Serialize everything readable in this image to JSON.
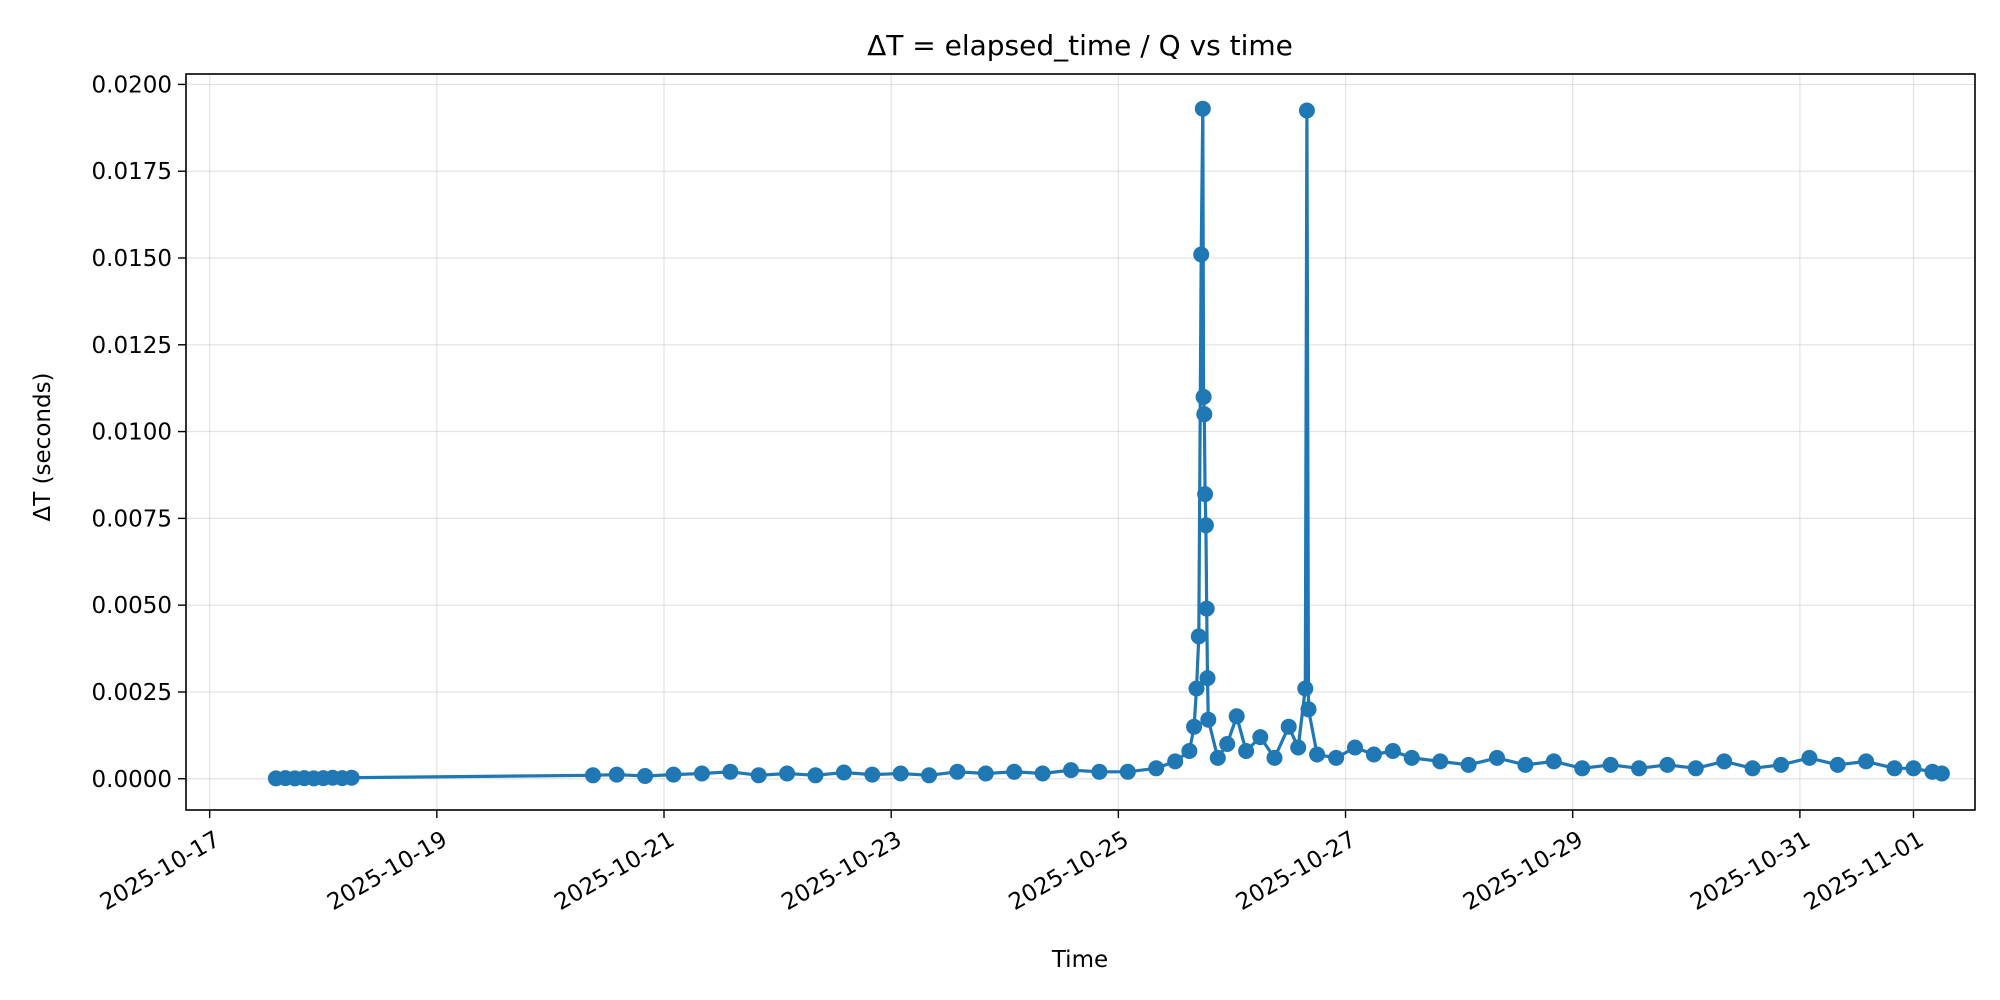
{
  "chart_data": {
    "type": "line",
    "title": "ΔT = elapsed_time / Q vs time",
    "xlabel": "Time",
    "ylabel": "ΔT (seconds)",
    "x_type": "date",
    "xlim": [
      "2025-10-16T19:00",
      "2025-11-01T13:00"
    ],
    "ylim": [
      -0.0009,
      0.0203
    ],
    "x_ticks": [
      "2025-10-17",
      "2025-10-19",
      "2025-10-21",
      "2025-10-23",
      "2025-10-25",
      "2025-10-27",
      "2025-10-29",
      "2025-10-31",
      "2025-11-01"
    ],
    "y_ticks": [
      "0.0000",
      "0.0025",
      "0.0050",
      "0.0075",
      "0.0100",
      "0.0125",
      "0.0150",
      "0.0175",
      "0.0200"
    ],
    "grid": true,
    "color": "#1f77b4",
    "series": [
      {
        "marker": "circle",
        "points": [
          [
            "2025-10-17T14:00",
            1e-05
          ],
          [
            "2025-10-17T16:00",
            2e-05
          ],
          [
            "2025-10-17T18:00",
            1e-05
          ],
          [
            "2025-10-17T20:00",
            2e-05
          ],
          [
            "2025-10-17T22:00",
            1e-05
          ],
          [
            "2025-10-18T00:00",
            2e-05
          ],
          [
            "2025-10-18T02:00",
            3e-05
          ],
          [
            "2025-10-18T04:00",
            2e-05
          ],
          [
            "2025-10-18T06:00",
            3e-05
          ],
          [
            "2025-10-20T09:00",
            0.0001
          ],
          [
            "2025-10-20T14:00",
            0.00012
          ],
          [
            "2025-10-20T20:00",
            8e-05
          ],
          [
            "2025-10-21T02:00",
            0.00012
          ],
          [
            "2025-10-21T08:00",
            0.00015
          ],
          [
            "2025-10-21T14:00",
            0.0002
          ],
          [
            "2025-10-21T20:00",
            0.0001
          ],
          [
            "2025-10-22T02:00",
            0.00015
          ],
          [
            "2025-10-22T08:00",
            0.0001
          ],
          [
            "2025-10-22T14:00",
            0.00018
          ],
          [
            "2025-10-22T20:00",
            0.00012
          ],
          [
            "2025-10-23T02:00",
            0.00015
          ],
          [
            "2025-10-23T08:00",
            0.0001
          ],
          [
            "2025-10-23T14:00",
            0.0002
          ],
          [
            "2025-10-23T20:00",
            0.00015
          ],
          [
            "2025-10-24T02:00",
            0.0002
          ],
          [
            "2025-10-24T08:00",
            0.00015
          ],
          [
            "2025-10-24T14:00",
            0.00025
          ],
          [
            "2025-10-24T20:00",
            0.0002
          ],
          [
            "2025-10-25T02:00",
            0.0002
          ],
          [
            "2025-10-25T08:00",
            0.0003
          ],
          [
            "2025-10-25T12:00",
            0.0005
          ],
          [
            "2025-10-25T15:00",
            0.0008
          ],
          [
            "2025-10-25T16:00",
            0.0015
          ],
          [
            "2025-10-25T16:30",
            0.0026
          ],
          [
            "2025-10-25T17:00",
            0.0041
          ],
          [
            "2025-10-25T17:30",
            0.0151
          ],
          [
            "2025-10-25T17:50",
            0.0193
          ],
          [
            "2025-10-25T18:00",
            0.011
          ],
          [
            "2025-10-25T18:10",
            0.0105
          ],
          [
            "2025-10-25T18:20",
            0.0082
          ],
          [
            "2025-10-25T18:30",
            0.0073
          ],
          [
            "2025-10-25T18:40",
            0.0049
          ],
          [
            "2025-10-25T18:50",
            0.0029
          ],
          [
            "2025-10-25T19:00",
            0.0017
          ],
          [
            "2025-10-25T21:00",
            0.0006
          ],
          [
            "2025-10-25T23:00",
            0.001
          ],
          [
            "2025-10-26T01:00",
            0.0018
          ],
          [
            "2025-10-26T03:00",
            0.0008
          ],
          [
            "2025-10-26T06:00",
            0.0012
          ],
          [
            "2025-10-26T09:00",
            0.0006
          ],
          [
            "2025-10-26T12:00",
            0.0015
          ],
          [
            "2025-10-26T14:00",
            0.0009
          ],
          [
            "2025-10-26T15:30",
            0.0026
          ],
          [
            "2025-10-26T15:50",
            0.01925
          ],
          [
            "2025-10-26T16:10",
            0.002
          ],
          [
            "2025-10-26T18:00",
            0.0007
          ],
          [
            "2025-10-26T22:00",
            0.0006
          ],
          [
            "2025-10-27T02:00",
            0.0009
          ],
          [
            "2025-10-27T06:00",
            0.0007
          ],
          [
            "2025-10-27T10:00",
            0.0008
          ],
          [
            "2025-10-27T14:00",
            0.0006
          ],
          [
            "2025-10-27T20:00",
            0.0005
          ],
          [
            "2025-10-28T02:00",
            0.0004
          ],
          [
            "2025-10-28T08:00",
            0.0006
          ],
          [
            "2025-10-28T14:00",
            0.0004
          ],
          [
            "2025-10-28T20:00",
            0.0005
          ],
          [
            "2025-10-29T02:00",
            0.0003
          ],
          [
            "2025-10-29T08:00",
            0.0004
          ],
          [
            "2025-10-29T14:00",
            0.0003
          ],
          [
            "2025-10-29T20:00",
            0.0004
          ],
          [
            "2025-10-30T02:00",
            0.0003
          ],
          [
            "2025-10-30T08:00",
            0.0005
          ],
          [
            "2025-10-30T14:00",
            0.0003
          ],
          [
            "2025-10-30T20:00",
            0.0004
          ],
          [
            "2025-10-31T02:00",
            0.0006
          ],
          [
            "2025-10-31T08:00",
            0.0004
          ],
          [
            "2025-10-31T14:00",
            0.0005
          ],
          [
            "2025-10-31T20:00",
            0.0003
          ],
          [
            "2025-11-01T00:00",
            0.0003
          ],
          [
            "2025-11-01T04:00",
            0.0002
          ],
          [
            "2025-11-01T06:00",
            0.00015
          ]
        ]
      }
    ]
  }
}
